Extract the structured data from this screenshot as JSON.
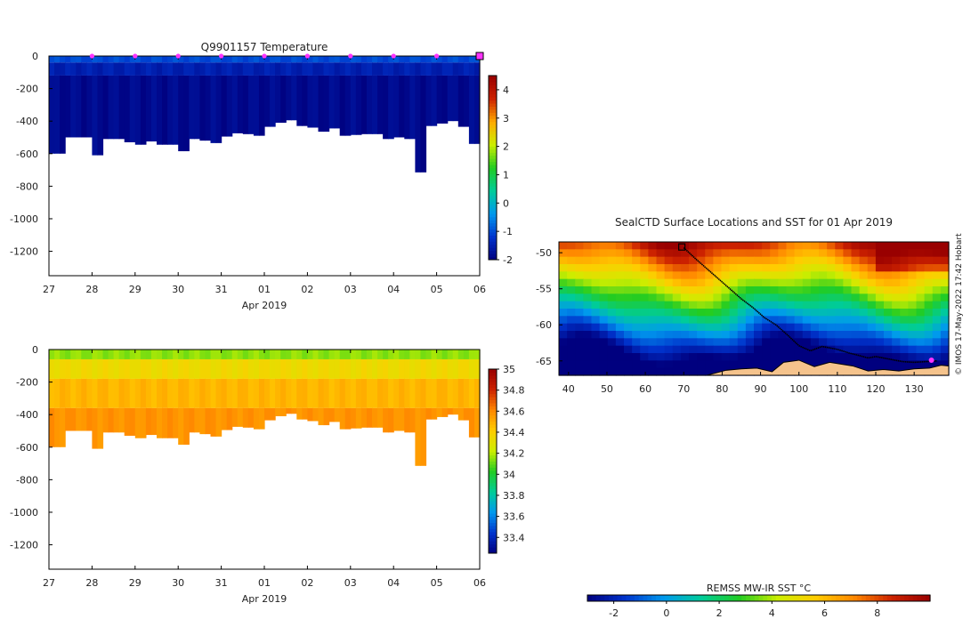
{
  "watermark": "© IMOS 17-May-2022 17:42 Hobart",
  "chart_data": [
    {
      "id": "temperature-section",
      "type": "heatmap",
      "title": "Q9901157  Temperature",
      "xlabel": "Apr 2019",
      "ylabel": "",
      "x_ticks": [
        "27",
        "28",
        "29",
        "30",
        "31",
        "01",
        "02",
        "03",
        "04",
        "05",
        "06"
      ],
      "y_ticks": [
        0,
        -200,
        -400,
        -600,
        -800,
        -1000,
        -1200
      ],
      "ylim": [
        -1350,
        0
      ],
      "x_range_days": [
        0,
        10
      ],
      "profile_marker_days": [
        1,
        2,
        3,
        4,
        5,
        6,
        7,
        8,
        9
      ],
      "current_marker_day": 10,
      "profile_max_depth": [
        [
          0.0,
          600
        ],
        [
          0.4,
          500
        ],
        [
          1.0,
          610
        ],
        [
          1.25,
          510
        ],
        [
          1.75,
          530
        ],
        [
          1.95,
          545
        ],
        [
          2.2,
          525
        ],
        [
          2.5,
          545
        ],
        [
          2.95,
          585
        ],
        [
          3.2,
          510
        ],
        [
          3.5,
          520
        ],
        [
          3.75,
          535
        ],
        [
          4.0,
          495
        ],
        [
          4.2,
          475
        ],
        [
          4.5,
          480
        ],
        [
          4.75,
          490
        ],
        [
          5.0,
          435
        ],
        [
          5.25,
          410
        ],
        [
          5.5,
          395
        ],
        [
          5.75,
          430
        ],
        [
          6.0,
          440
        ],
        [
          6.25,
          465
        ],
        [
          6.5,
          445
        ],
        [
          6.75,
          490
        ],
        [
          7.0,
          485
        ],
        [
          7.25,
          480
        ],
        [
          7.5,
          480
        ],
        [
          7.75,
          510
        ],
        [
          8.0,
          500
        ],
        [
          8.25,
          510
        ],
        [
          8.5,
          715
        ],
        [
          8.75,
          430
        ],
        [
          9.0,
          415
        ],
        [
          9.25,
          400
        ],
        [
          9.45,
          435
        ],
        [
          9.75,
          540
        ],
        [
          9.95,
          400
        ],
        [
          10.0,
          400
        ]
      ],
      "colorbar": {
        "min": -2,
        "max": 4.5,
        "ticks": [
          -2,
          -1,
          0,
          1,
          2,
          3,
          4
        ],
        "colors": [
          "#00007f",
          "#0033cc",
          "#0099ee",
          "#00cc99",
          "#22cc22",
          "#ccee00",
          "#ffaa00",
          "#cc2200",
          "#990000"
        ]
      },
      "layers": [
        {
          "top": 0,
          "bottom": 40,
          "value": -1.0
        },
        {
          "top": 40,
          "bottom": 120,
          "value": -1.5
        },
        {
          "top": 120,
          "bottom": 800,
          "value": -1.85
        }
      ]
    },
    {
      "id": "salinity-section",
      "type": "heatmap",
      "title": "",
      "xlabel": "Apr 2019",
      "ylabel": "",
      "x_ticks": [
        "27",
        "28",
        "29",
        "30",
        "31",
        "01",
        "02",
        "03",
        "04",
        "05",
        "06"
      ],
      "y_ticks": [
        0,
        -200,
        -400,
        -600,
        -800,
        -1000,
        -1200
      ],
      "ylim": [
        -1350,
        0
      ],
      "colorbar": {
        "min": 33.25,
        "max": 35.0,
        "ticks": [
          "33.4",
          "33.6",
          "33.8",
          "34",
          "34.2",
          "34.4",
          "34.6",
          "34.8",
          "35"
        ],
        "colors": [
          "#00007f",
          "#0033cc",
          "#0099ee",
          "#00cc99",
          "#22cc22",
          "#ccee00",
          "#ffcc00",
          "#ff8800",
          "#cc2200",
          "#990000"
        ]
      },
      "layers": [
        {
          "top": 0,
          "bottom": 60,
          "value": 34.15
        },
        {
          "top": 60,
          "bottom": 180,
          "value": 34.35
        },
        {
          "top": 180,
          "bottom": 360,
          "value": 34.48
        },
        {
          "top": 360,
          "bottom": 800,
          "value": 34.58
        }
      ]
    },
    {
      "id": "sst-map",
      "type": "heatmap",
      "title": "SealCTD Surface Locations and SST for 01 Apr 2019",
      "xlabel": "",
      "ylabel": "",
      "x_ticks": [
        40,
        50,
        60,
        70,
        80,
        90,
        100,
        110,
        120,
        130
      ],
      "y_ticks": [
        -50,
        -55,
        -60,
        -65
      ],
      "xlim": [
        37.5,
        139
      ],
      "ylim": [
        -67,
        -48.5
      ],
      "colorbar": {
        "label": "REMSS MW-IR SST °C",
        "min": -3,
        "max": 10,
        "ticks": [
          -2,
          0,
          2,
          4,
          6,
          8
        ],
        "colors": [
          "#00007f",
          "#0033cc",
          "#0099ee",
          "#00cc99",
          "#22cc22",
          "#ccee00",
          "#ffcc00",
          "#ff8800",
          "#cc2200",
          "#990000"
        ]
      },
      "track": [
        [
          70,
          -49.3
        ],
        [
          73,
          -50.8
        ],
        [
          76,
          -52.2
        ],
        [
          79,
          -53.6
        ],
        [
          82,
          -55.0
        ],
        [
          85,
          -56.4
        ],
        [
          88,
          -57.6
        ],
        [
          91,
          -59.0
        ],
        [
          94,
          -60.0
        ],
        [
          97,
          -61.4
        ],
        [
          100,
          -62.9
        ],
        [
          103,
          -63.6
        ],
        [
          106,
          -63.0
        ],
        [
          110,
          -63.4
        ],
        [
          113,
          -63.9
        ],
        [
          116,
          -64.3
        ],
        [
          118,
          -64.6
        ],
        [
          120,
          -64.4
        ],
        [
          123,
          -64.7
        ],
        [
          127,
          -65.1
        ],
        [
          130,
          -65.2
        ],
        [
          133,
          -65.1
        ],
        [
          136,
          -65.0
        ]
      ],
      "start_marker": [
        69.5,
        -49.2
      ],
      "end_marker": [
        134.5,
        -64.9
      ]
    }
  ]
}
